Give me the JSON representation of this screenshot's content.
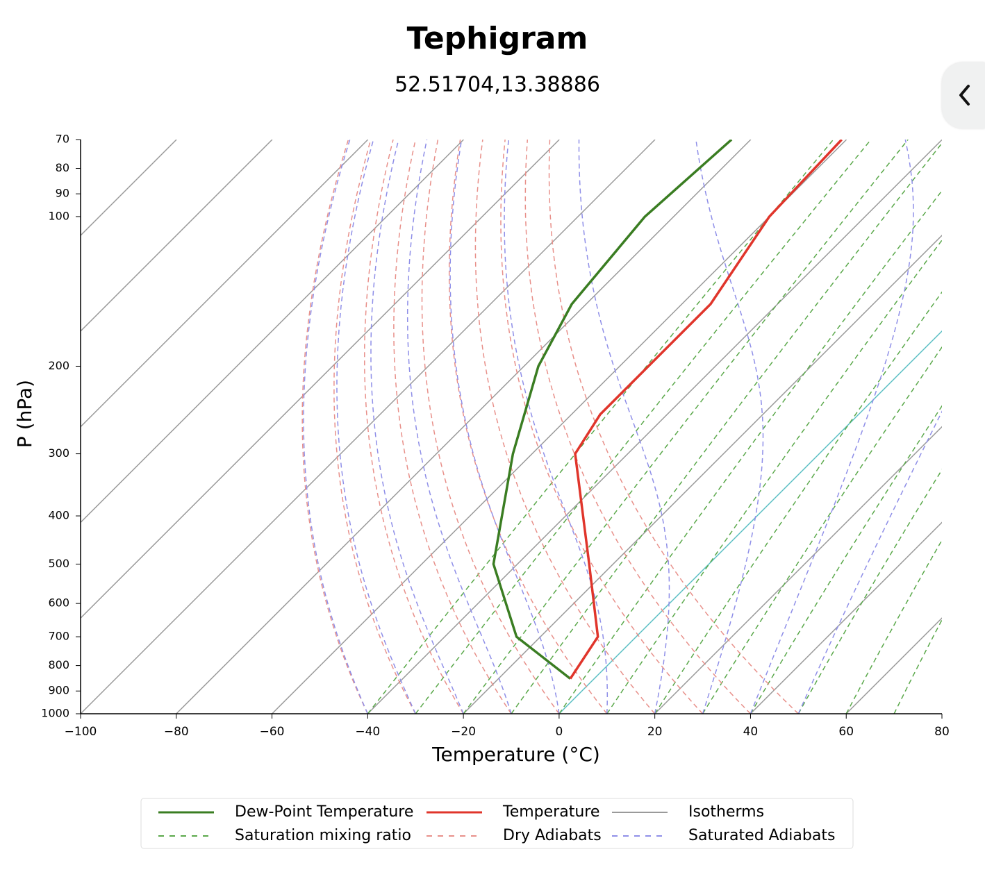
{
  "chart_data": {
    "type": "tephigram",
    "title": "Tephigram",
    "subtitle": "52.51704,13.38886",
    "x_label": "Temperature (°C)",
    "y_label": "P (hPa)",
    "xlim": [
      -100,
      80
    ],
    "xticks": [
      {
        "value": -100,
        "label": "−100"
      },
      {
        "value": -80,
        "label": "−80"
      },
      {
        "value": -60,
        "label": "−60"
      },
      {
        "value": -40,
        "label": "−40"
      },
      {
        "value": -20,
        "label": "−20"
      },
      0,
      20,
      40,
      60,
      80
    ],
    "ylim": [
      1000,
      70
    ],
    "y_scale": "log",
    "yticks": [
      70,
      80,
      90,
      100,
      200,
      300,
      400,
      500,
      600,
      700,
      800,
      900,
      1000
    ],
    "highlight_isotherm": {
      "value": 0,
      "color": "#5bbfc4"
    },
    "series": [
      {
        "name": "Dew-Point Temperature",
        "color": "#3a7d22",
        "style": "solid",
        "line_type": "profile",
        "pressure": [
          850,
          700,
          500,
          300,
          200,
          150,
          100,
          70
        ],
        "values": [
          -5,
          -25,
          -45,
          -64,
          -77,
          -83,
          -86,
          -84
        ]
      },
      {
        "name": "Temperature",
        "color": "#e0352b",
        "style": "solid",
        "line_type": "profile",
        "pressure": [
          850,
          700,
          500,
          300,
          250,
          150,
          100,
          70
        ],
        "values": [
          -5,
          -8,
          -25,
          -51,
          -54,
          -54,
          -60,
          -61
        ]
      },
      {
        "name": "Isotherms",
        "color": "#9a9a9a",
        "style": "solid",
        "line_type": "isotherm",
        "values": [
          -200,
          -180,
          -160,
          -140,
          -120,
          -100,
          -80,
          -60,
          -40,
          -20,
          0,
          20,
          40,
          60,
          80
        ]
      },
      {
        "name": "Saturation mixing ratio",
        "color": "#5aa84a",
        "style": "dashed",
        "line_type": "mixing_ratio",
        "values": [
          -40,
          -30,
          -20,
          -10,
          0,
          10,
          20,
          30,
          40,
          50,
          60,
          70
        ]
      },
      {
        "name": "Dry Adiabats",
        "color": "#e8908a",
        "style": "dashed",
        "line_type": "dry_adiabat",
        "values": [
          -40,
          -30,
          -20,
          -10,
          0,
          10,
          20,
          30,
          40,
          50
        ]
      },
      {
        "name": "Saturated Adiabats",
        "color": "#8f8fe8",
        "style": "dashed",
        "line_type": "saturated_adiabat",
        "values": [
          -40,
          -30,
          -20,
          -10,
          0,
          10,
          20,
          30,
          40,
          50
        ]
      }
    ]
  }
}
